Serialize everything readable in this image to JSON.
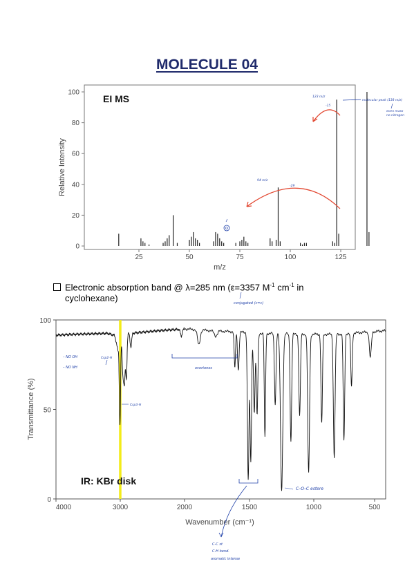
{
  "page": {
    "title": "MOLECULE 04"
  },
  "uv": {
    "prefix": "Electronic absorption band @ λ=285 nm (ε=3357 M",
    "sup1": "-1",
    "mid": " cm",
    "sup2": "-1",
    "suffix": " in",
    "line2": "cyclohexane)",
    "note": "conjugated (c=c)"
  },
  "colors": {
    "title": "#1f2a6b",
    "annotation": "#1e3fa8",
    "arrow": "#e2452e",
    "highlight": "#f3ec19",
    "bars": "#222222"
  },
  "ms": {
    "chart_data": {
      "type": "bar",
      "title": "EI MS",
      "xlabel": "m/z",
      "ylabel": "Relative Intensity",
      "xlim": [
        0,
        145
      ],
      "ylim": [
        0,
        100
      ],
      "xticks": [
        25,
        50,
        75,
        100,
        125
      ],
      "yticks": [
        0,
        20,
        40,
        60,
        80,
        100
      ],
      "peaks": [
        {
          "mz": 15,
          "i": 8
        },
        {
          "mz": 26,
          "i": 5
        },
        {
          "mz": 27,
          "i": 3
        },
        {
          "mz": 28,
          "i": 2
        },
        {
          "mz": 30,
          "i": 1
        },
        {
          "mz": 37,
          "i": 2
        },
        {
          "mz": 38,
          "i": 3
        },
        {
          "mz": 39,
          "i": 5
        },
        {
          "mz": 40,
          "i": 7
        },
        {
          "mz": 42,
          "i": 20
        },
        {
          "mz": 44,
          "i": 2
        },
        {
          "mz": 50,
          "i": 4
        },
        {
          "mz": 51,
          "i": 6
        },
        {
          "mz": 52,
          "i": 9
        },
        {
          "mz": 53,
          "i": 5
        },
        {
          "mz": 54,
          "i": 4
        },
        {
          "mz": 55,
          "i": 2
        },
        {
          "mz": 62,
          "i": 3
        },
        {
          "mz": 63,
          "i": 9
        },
        {
          "mz": 64,
          "i": 8
        },
        {
          "mz": 65,
          "i": 5
        },
        {
          "mz": 66,
          "i": 3
        },
        {
          "mz": 67,
          "i": 2
        },
        {
          "mz": 73,
          "i": 2
        },
        {
          "mz": 75,
          "i": 3
        },
        {
          "mz": 76,
          "i": 4
        },
        {
          "mz": 77,
          "i": 6
        },
        {
          "mz": 78,
          "i": 3
        },
        {
          "mz": 79,
          "i": 2
        },
        {
          "mz": 90,
          "i": 5
        },
        {
          "mz": 91,
          "i": 3
        },
        {
          "mz": 93,
          "i": 4
        },
        {
          "mz": 94,
          "i": 38
        },
        {
          "mz": 95,
          "i": 3
        },
        {
          "mz": 105,
          "i": 2
        },
        {
          "mz": 106,
          "i": 1
        },
        {
          "mz": 107,
          "i": 2
        },
        {
          "mz": 108,
          "i": 2
        },
        {
          "mz": 121,
          "i": 3
        },
        {
          "mz": 122,
          "i": 2
        },
        {
          "mz": 123,
          "i": 95
        },
        {
          "mz": 124,
          "i": 8
        },
        {
          "mz": 138,
          "i": 100
        },
        {
          "mz": 139,
          "i": 9
        }
      ],
      "annotations": {
        "p123": "123 m/z",
        "p94": "94 m/z",
        "loss15": "-15",
        "loss29": "-29",
        "molecular": "molecular peak (138 m/z)",
        "even_mass": "even mass",
        "no_nitrogen": "no nitrogen"
      }
    }
  },
  "ir": {
    "chart_data": {
      "type": "line",
      "title": "IR: KBr disk",
      "xlabel": "Wavenumber (cm⁻¹)",
      "ylabel": "Transmittance (%)",
      "xlim": [
        4000,
        400
      ],
      "ylim": [
        0,
        100
      ],
      "xticks": [
        4000,
        3000,
        2000,
        1500,
        1000,
        500
      ],
      "yticks": [
        0,
        50,
        100
      ],
      "baseline": [
        [
          4000,
          91.5
        ],
        [
          3700,
          92
        ],
        [
          3400,
          92.3
        ],
        [
          3200,
          92.5
        ],
        [
          3100,
          91.5
        ],
        [
          2700,
          93
        ],
        [
          2400,
          94
        ],
        [
          2000,
          95
        ],
        [
          1800,
          94
        ],
        [
          1650,
          93.5
        ],
        [
          1400,
          92.5
        ],
        [
          1100,
          92
        ],
        [
          800,
          92
        ],
        [
          600,
          93
        ],
        [
          400,
          94
        ]
      ],
      "bands": [
        {
          "x": 3060,
          "t": 88,
          "w": 14
        },
        {
          "x": 3035,
          "t": 84,
          "w": 12
        },
        {
          "x": 3005,
          "t": 42,
          "w": 10
        },
        {
          "x": 2960,
          "t": 72,
          "w": 12
        },
        {
          "x": 2935,
          "t": 66,
          "w": 12
        },
        {
          "x": 2905,
          "t": 68,
          "w": 10
        },
        {
          "x": 2835,
          "t": 85,
          "w": 12
        },
        {
          "x": 2050,
          "t": 91,
          "w": 15
        },
        {
          "x": 1890,
          "t": 86,
          "w": 10
        },
        {
          "x": 1760,
          "t": 91,
          "w": 12
        },
        {
          "x": 1613,
          "t": 73,
          "w": 5
        },
        {
          "x": 1586,
          "t": 72,
          "w": 6
        },
        {
          "x": 1510,
          "t": 11,
          "w": 6
        },
        {
          "x": 1490,
          "t": 21,
          "w": 6
        },
        {
          "x": 1463,
          "t": 48,
          "w": 6
        },
        {
          "x": 1441,
          "t": 47,
          "w": 6
        },
        {
          "x": 1380,
          "t": 34,
          "w": 5
        },
        {
          "x": 1300,
          "t": 53,
          "w": 6
        },
        {
          "x": 1250,
          "t": 5,
          "w": 9
        },
        {
          "x": 1178,
          "t": 32,
          "w": 6
        },
        {
          "x": 1110,
          "t": 46,
          "w": 6
        },
        {
          "x": 1040,
          "t": 14,
          "w": 7
        },
        {
          "x": 935,
          "t": 42,
          "w": 6
        },
        {
          "x": 832,
          "t": 23,
          "w": 7
        },
        {
          "x": 752,
          "t": 32,
          "w": 6
        },
        {
          "x": 690,
          "t": 63,
          "w": 6
        },
        {
          "x": 535,
          "t": 79,
          "w": 8
        }
      ],
      "highlight_x": 3000,
      "annotations": {
        "no_oh": "– NO OH",
        "no_nh": "– NO NH",
        "csp2h": "Csp2-H",
        "csp3h": "Csp3-H",
        "overtones": "overtones",
        "coc": "C–O–C estere",
        "cc_st": "C-C st",
        "ch_bend": "C-H bend.",
        "aromatic": "aromatic intense"
      }
    }
  }
}
